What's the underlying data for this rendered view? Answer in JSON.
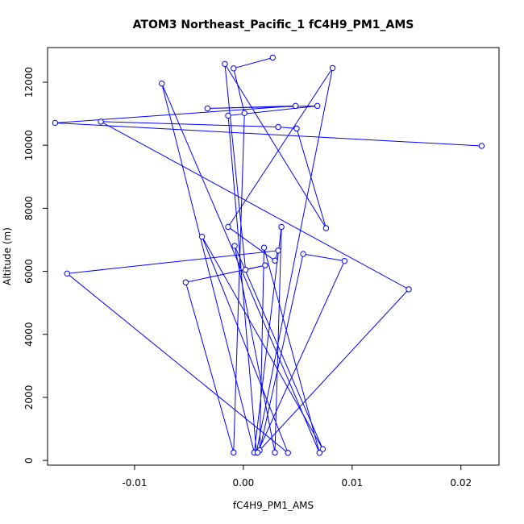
{
  "chart_data": {
    "type": "line",
    "title": "ATOM3 Northeast_Pacific_1 fC4H9_PM1_AMS",
    "xlabel": "fC4H9_PM1_AMS",
    "ylabel": "Altitude (m)",
    "xlim": [
      -0.018,
      0.0235
    ],
    "ylim": [
      -150,
      13100
    ],
    "xticks": [
      -0.01,
      0.0,
      0.01,
      0.02
    ],
    "xtick_labels": [
      "-0.01",
      "0.00",
      "0.01",
      "0.02"
    ],
    "yticks": [
      0,
      2000,
      4000,
      6000,
      8000,
      10000,
      12000
    ],
    "ytick_labels": [
      "0",
      "2000",
      "4000",
      "6000",
      "8000",
      "10000",
      "12000"
    ],
    "grid": false,
    "series_color": "#0000ff",
    "points": [
      {
        "x": 0.0219,
        "y": 9980
      },
      {
        "x": -0.0173,
        "y": 10710
      },
      {
        "x": 0.0048,
        "y": 11250
      },
      {
        "x": -0.0033,
        "y": 11170
      },
      {
        "x": 0.0068,
        "y": 11250
      },
      {
        "x": -0.0014,
        "y": 10940
      },
      {
        "x": 0.0012,
        "y": 250
      },
      {
        "x": 0.0082,
        "y": 12450
      },
      {
        "x": -0.0014,
        "y": 7410
      },
      {
        "x": 0.0029,
        "y": 6340
      },
      {
        "x": 0.0032,
        "y": 6660
      },
      {
        "x": -0.0162,
        "y": 5930
      },
      {
        "x": 0.0041,
        "y": 240
      },
      {
        "x": -0.0038,
        "y": 7100
      },
      {
        "x": 0.0073,
        "y": 360
      },
      {
        "x": -0.0008,
        "y": 6810
      },
      {
        "x": 0.0029,
        "y": 250
      },
      {
        "x": 0.0035,
        "y": 7410
      },
      {
        "x": 0.001,
        "y": 250
      },
      {
        "x": -0.0075,
        "y": 11960
      },
      {
        "x": 0.007,
        "y": 240
      },
      {
        "x": 0.0019,
        "y": 6750
      },
      {
        "x": 0.0015,
        "y": 320
      },
      {
        "x": 0.0055,
        "y": 6550
      },
      {
        "x": 0.0093,
        "y": 6330
      },
      {
        "x": 0.0013,
        "y": 250
      },
      {
        "x": 0.0152,
        "y": 5430
      },
      {
        "x": -0.0131,
        "y": 10750
      },
      {
        "x": 0.0032,
        "y": 10580
      },
      {
        "x": 0.0049,
        "y": 10530
      },
      {
        "x": 0.0076,
        "y": 7370
      },
      {
        "x": -0.0017,
        "y": 12580
      },
      {
        "x": 0.0002,
        "y": 6050
      },
      {
        "x": 0.002,
        "y": 6190
      },
      {
        "x": -0.0053,
        "y": 5650
      },
      {
        "x": -0.0009,
        "y": 250
      },
      {
        "x": 0.0001,
        "y": 11020
      },
      {
        "x": -0.0009,
        "y": 12440
      },
      {
        "x": 0.0027,
        "y": 12780
      }
    ]
  }
}
